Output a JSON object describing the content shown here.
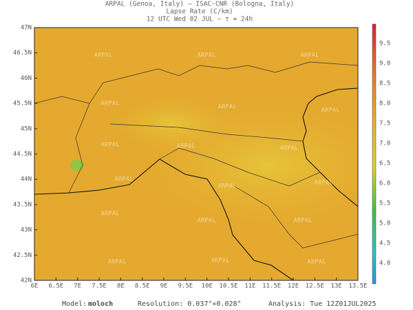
{
  "header": {
    "line1": "ARPAL (Genoa, Italy)  –  ISAC-CNR (Bologna, Italy)",
    "line2": "Lapse Rate (C/km)",
    "line3": "12 UTC Wed 02 JUL  –  τ = 24h"
  },
  "map": {
    "lat_labels": [
      "47N",
      "46.5N",
      "46N",
      "45.5N",
      "45N",
      "44.5N",
      "44N",
      "43.5N",
      "43N",
      "42.5N",
      "42N"
    ],
    "lon_labels": [
      "6E",
      "6.5E",
      "7E",
      "7.5E",
      "8E",
      "8.5E",
      "9E",
      "9.5E",
      "10E",
      "10.5E",
      "11E",
      "11.5E",
      "12E",
      "12.5E",
      "13E",
      "13.5E"
    ],
    "watermark": "ARPAL"
  },
  "colorbar": {
    "labels": [
      "9.5",
      "9.0",
      "8.5",
      "8.0",
      "7.5",
      "7.0",
      "6.5",
      "6.0",
      "5.5",
      "5.0",
      "4.5",
      "4.0"
    ]
  },
  "footer": {
    "model_label": "Model:",
    "model": "moloch",
    "resolution": "Resolution: 0.037°×0.028°",
    "analysis": "Analysis: Tue 12Z01JUL2025"
  }
}
